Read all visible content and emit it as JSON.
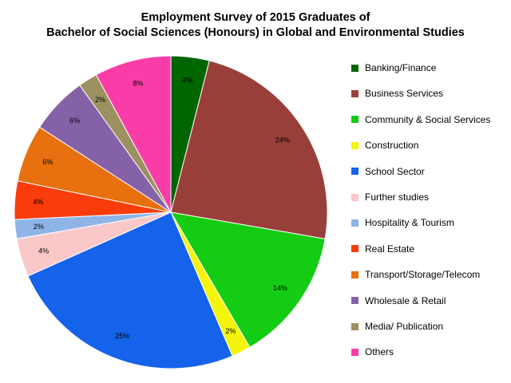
{
  "chart_data": {
    "type": "pie",
    "title": "Employment Survey of 2015 Graduates of",
    "subtitle": "Bachelor of Social Sciences (Honours) in Global and Environmental Studies",
    "legend_position": "right",
    "slices": [
      {
        "name": "Banking/Finance",
        "value": 4,
        "label": "4%",
        "color": "#006600"
      },
      {
        "name": "Business Services",
        "value": 24,
        "label": "24%",
        "color": "#993f3a"
      },
      {
        "name": "Community & Social Services",
        "value": 14,
        "label": "14%",
        "color": "#14cc14"
      },
      {
        "name": "Construction",
        "value": 2,
        "label": "2%",
        "color": "#f5f50a"
      },
      {
        "name": "School Sector",
        "value": 25,
        "label": "25%",
        "color": "#1563ea"
      },
      {
        "name": "Further studies",
        "value": 4,
        "label": "4%",
        "color": "#fac8c8"
      },
      {
        "name": "Hospitality & Tourism",
        "value": 2,
        "label": "2%",
        "color": "#8fb5e8"
      },
      {
        "name": "Real Estate",
        "value": 4,
        "label": "4%",
        "color": "#fa3c0a"
      },
      {
        "name": "Transport/Storage/Telecom",
        "value": 6,
        "label": "6%",
        "color": "#e8700f"
      },
      {
        "name": "Wholesale & Retail",
        "value": 6,
        "label": "6%",
        "color": "#8562a8"
      },
      {
        "name": "Media/ Publication",
        "value": 2,
        "label": "2%",
        "color": "#9c9060"
      },
      {
        "name": "Others",
        "value": 8,
        "label": "8%",
        "color": "#fa3ca8"
      }
    ]
  }
}
